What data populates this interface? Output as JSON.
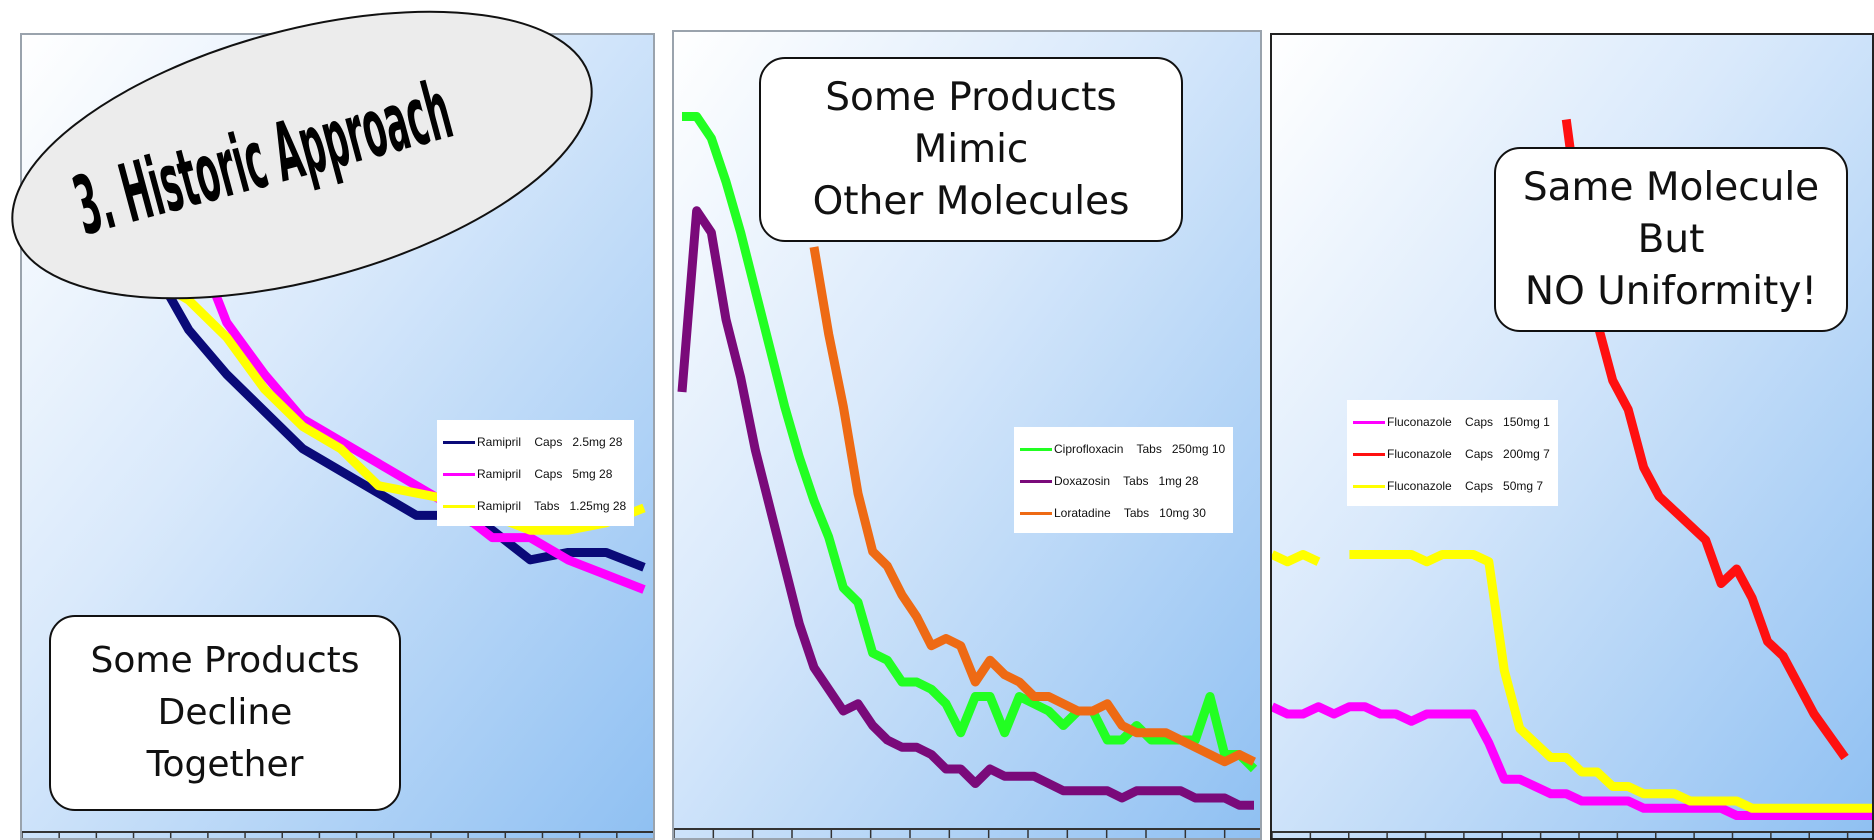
{
  "oval_title": "3. Historic Approach",
  "colors": {
    "navy": "#0a0a78",
    "magenta": "#ff00ff",
    "yellow": "#ffff00",
    "green": "#22ff22",
    "purple": "#7a0a7a",
    "orange": "#ee6a14",
    "red": "#ff1010"
  },
  "chart_data": [
    {
      "type": "line",
      "callout": [
        "Some Products",
        "Decline",
        "Together"
      ],
      "ylim": [
        0,
        100
      ],
      "x": [
        1,
        2,
        3,
        4,
        5,
        6,
        7,
        8,
        9,
        10,
        11,
        12,
        13,
        14,
        15,
        16,
        17
      ],
      "series": [
        {
          "name": "Ramipril    Caps   2.5mg 28",
          "color": "#0a0a78",
          "values": [
            null,
            86,
            82,
            76,
            67,
            61,
            56,
            51,
            48,
            45,
            42,
            42,
            40,
            36,
            37,
            37,
            35
          ]
        },
        {
          "name": "Ramipril    Caps   5mg 28",
          "color": "#ff00ff",
          "values": [
            null,
            null,
            null,
            96,
            81,
            68,
            61,
            55,
            52,
            49,
            46,
            43,
            39,
            39,
            36,
            34,
            32
          ]
        },
        {
          "name": "Ramipril    Tabs   1.25mg 28",
          "color": "#ffff00",
          "values": [
            84,
            86,
            76,
            74,
            71,
            66,
            59,
            54,
            51,
            46,
            45,
            44,
            42,
            40,
            40,
            41,
            43
          ]
        }
      ]
    },
    {
      "type": "line",
      "callout": [
        "Some Products",
        "Mimic",
        "Other Molecules"
      ],
      "ylim": [
        0,
        100
      ],
      "x": [
        1,
        2,
        3,
        4,
        5,
        6,
        7,
        8,
        9,
        10,
        11,
        12,
        13,
        14,
        15,
        16,
        17,
        18,
        19,
        20,
        21,
        22,
        23,
        24,
        25,
        26,
        27,
        28,
        29,
        30,
        31,
        32,
        33,
        34,
        35,
        36,
        37,
        38,
        39,
        40
      ],
      "series": [
        {
          "name": "Ciprofloxacin    Tabs   250mg 10",
          "color": "#22ff22",
          "values": [
            98,
            98,
            95,
            89,
            82,
            74,
            66,
            58,
            51,
            45,
            40,
            33,
            31,
            24,
            23,
            20,
            20,
            19,
            17,
            13,
            18,
            18,
            13,
            18,
            17,
            16,
            14,
            16,
            16,
            12,
            12,
            14,
            12,
            12,
            12,
            12,
            18,
            10,
            10,
            8
          ]
        },
        {
          "name": "Doxazosin    Tabs   1mg 28",
          "color": "#7a0a7a",
          "values": [
            60,
            85,
            82,
            70,
            62,
            52,
            44,
            36,
            28,
            22,
            19,
            16,
            17,
            14,
            12,
            11,
            11,
            10,
            8,
            8,
            6,
            8,
            7,
            7,
            7,
            6,
            5,
            5,
            5,
            5,
            4,
            5,
            5,
            5,
            5,
            4,
            4,
            4,
            3,
            3
          ]
        },
        {
          "name": "Loratadine    Tabs   10mg 30",
          "color": "#ee6a14",
          "values": [
            null,
            null,
            null,
            null,
            null,
            null,
            null,
            null,
            null,
            80,
            68,
            58,
            46,
            38,
            36,
            32,
            29,
            25,
            26,
            25,
            20,
            23,
            21,
            20,
            18,
            18,
            17,
            16,
            16,
            17,
            14,
            13,
            13,
            13,
            12,
            11,
            10,
            9,
            10,
            9
          ]
        }
      ]
    },
    {
      "type": "line",
      "callout": [
        "Same Molecule",
        "But",
        "NO Uniformity!"
      ],
      "ylim": [
        0,
        100
      ],
      "x": [
        1,
        2,
        3,
        4,
        5,
        6,
        7,
        8,
        9,
        10,
        11,
        12,
        13,
        14,
        15,
        16,
        17,
        18,
        19,
        20,
        21,
        22,
        23,
        24,
        25,
        26,
        27,
        28,
        29,
        30,
        31,
        32,
        33,
        34,
        35,
        36,
        37,
        38,
        39,
        40
      ],
      "series": [
        {
          "name": "Fluconazole    Caps   150mg 1",
          "color": "#ff00ff",
          "values": [
            17,
            16,
            16,
            17,
            16,
            17,
            17,
            16,
            16,
            15,
            16,
            16,
            16,
            16,
            12,
            7,
            7,
            6,
            5,
            5,
            4,
            4,
            4,
            4,
            3,
            3,
            3,
            3,
            3,
            3,
            2,
            2,
            2,
            2,
            2,
            2,
            2,
            2,
            2,
            2
          ]
        },
        {
          "name": "Fluconazole    Caps   200mg 7",
          "color": "#ff1010",
          "values": [
            null,
            null,
            null,
            null,
            null,
            null,
            null,
            null,
            null,
            null,
            null,
            null,
            null,
            null,
            null,
            null,
            null,
            null,
            null,
            98,
            82,
            70,
            62,
            58,
            50,
            46,
            44,
            42,
            40,
            34,
            36,
            32,
            26,
            24,
            20,
            16,
            13,
            10,
            null,
            null
          ]
        },
        {
          "name": "Fluconazole    Caps   50mg 7",
          "color": "#ffff00",
          "values": [
            38,
            37,
            38,
            37,
            null,
            38,
            38,
            38,
            38,
            38,
            37,
            38,
            38,
            38,
            37,
            22,
            14,
            12,
            10,
            10,
            8,
            8,
            6,
            6,
            5,
            5,
            5,
            4,
            4,
            4,
            4,
            3,
            3,
            3,
            3,
            3,
            3,
            3,
            3,
            3
          ]
        }
      ]
    }
  ]
}
